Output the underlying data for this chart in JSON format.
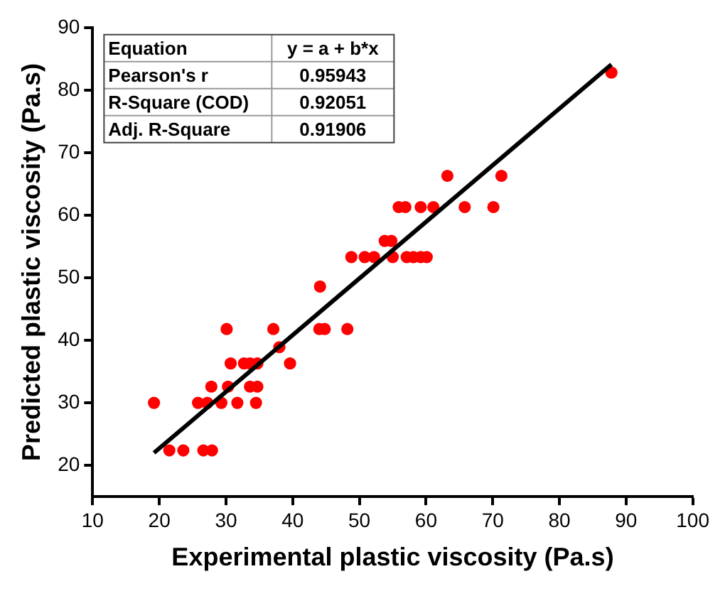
{
  "chart_data": {
    "type": "scatter",
    "xlabel": "Experimental plastic viscosity (Pa.s)",
    "ylabel": "Predicted plastic viscosity (Pa.s)",
    "xlim": [
      10,
      100
    ],
    "xticks": [
      10,
      20,
      30,
      40,
      50,
      60,
      70,
      80,
      90,
      100
    ],
    "ylim": [
      15,
      90
    ],
    "yticks": [
      20,
      30,
      40,
      50,
      60,
      70,
      80,
      90
    ],
    "grid": false,
    "legend": false,
    "marker": "circle",
    "annotations": [
      "Equation",
      "y = a + b*x",
      "Pearson's r",
      "0.95943",
      "R-Square (COD)",
      "0.92051",
      "Adj. R-Square",
      "0.91906"
    ],
    "series": [
      {
        "color": "#ff0000",
        "x": [
          21.5,
          23.6,
          26.6,
          27.9,
          19.2,
          25.8,
          27.2,
          28.3,
          29.3,
          31.7,
          34.1,
          34.5,
          27.8,
          30.3,
          33.6,
          34.7,
          30.7,
          32.7,
          33.6,
          34.7,
          39.6,
          38.0,
          30.1,
          37.1,
          44.0,
          44.8,
          48.2,
          44.1,
          48.8,
          50.8,
          52.2,
          55.0,
          57.1,
          58.1,
          59.2,
          60.1,
          53.8,
          54.8,
          55.9,
          56.9,
          59.2,
          61.1,
          65.8,
          70.1,
          63.2,
          71.3,
          87.8
        ],
        "values": [
          22.4,
          22.4,
          22.4,
          22.4,
          30,
          30,
          30,
          null,
          30,
          30,
          null,
          30,
          32.6,
          32.6,
          32.6,
          32.6,
          36.3,
          36.3,
          36.3,
          36.3,
          36.3,
          38.9,
          41.8,
          41.8,
          41.8,
          41.8,
          41.8,
          48.6,
          53.3,
          53.3,
          53.3,
          53.3,
          53.3,
          53.3,
          53.3,
          53.3,
          55.9,
          55.9,
          61.3,
          61.3,
          61.3,
          61.3,
          61.3,
          61.3,
          66.3,
          66.3,
          82.8
        ]
      },
      {
        "type": "line",
        "color": "#000000",
        "marker": "none",
        "x": [
          19.2,
          87.8
        ],
        "values": [
          22.0,
          84.1
        ]
      }
    ]
  }
}
